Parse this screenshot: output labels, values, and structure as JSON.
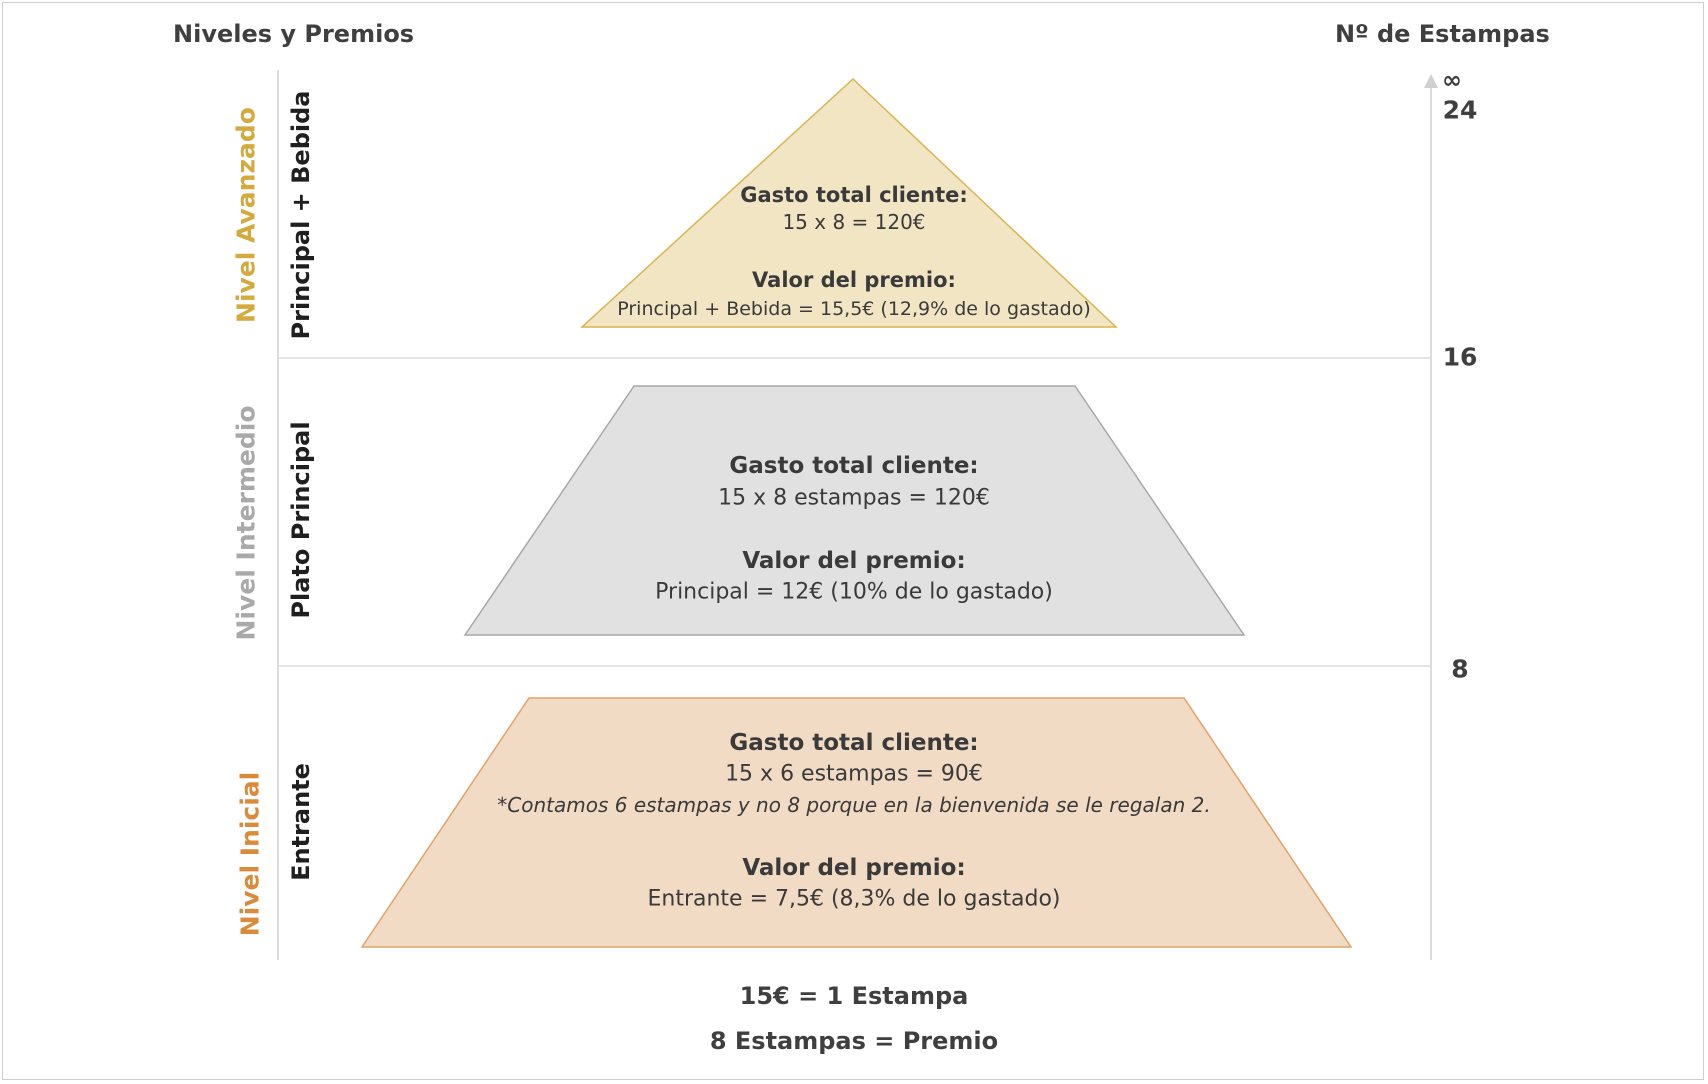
{
  "header": {
    "left_title": "Niveles y Premios",
    "right_title": "Nº de Estampas"
  },
  "levels": [
    {
      "name": "Nivel Avanzado",
      "name_color": "#d4aa3c",
      "reward": "Principal + Bebida",
      "fill": "#f2e5c3",
      "stroke": "#d9b451",
      "spend_title": "Gasto total cliente:",
      "spend_detail": "15 x 8 = 120€",
      "prize_title": "Valor del premio:",
      "prize_detail": "Principal + Bebida = 15,5€ (12,9% de lo gastado)"
    },
    {
      "name": "Nivel Intermedio",
      "name_color": "#a9a9a9",
      "reward": "Plato Principal",
      "fill": "#e1e1e1",
      "stroke": "#a8a8a8",
      "spend_title": "Gasto total cliente:",
      "spend_detail": "15 x 8 estampas = 120€",
      "prize_title": "Valor del premio:",
      "prize_detail": "Principal = 12€ (10% de lo gastado)"
    },
    {
      "name": "Nivel Inicial",
      "name_color": "#d98b3a",
      "reward": "Entrante",
      "fill": "#f1dbc4",
      "stroke": "#e0a36b",
      "spend_title": "Gasto total cliente:",
      "spend_detail": "15 x 6 estampas = 90€",
      "note": "*Contamos 6 estampas y no 8 porque en la bienvenida se le regalan 2.",
      "prize_title": "Valor del premio:",
      "prize_detail": "Entrante = 7,5€ (8,3% de lo gastado)"
    }
  ],
  "axis": {
    "infinity": "∞",
    "ticks": [
      "24",
      "16",
      "8"
    ]
  },
  "footer": {
    "line1": "15€ = 1 Estampa",
    "line2": "8 Estampas = Premio"
  }
}
